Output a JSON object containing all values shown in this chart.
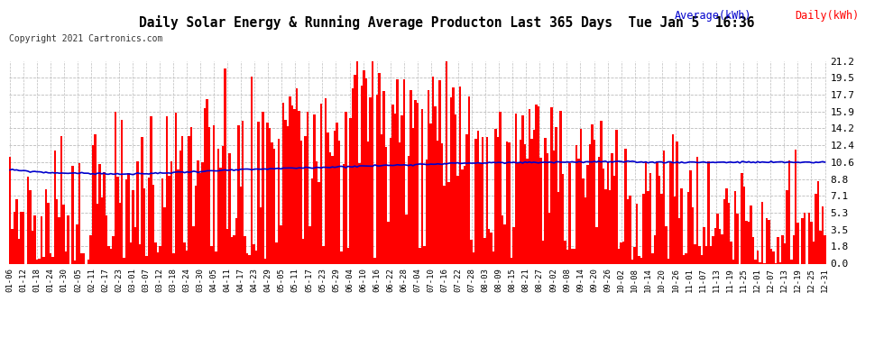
{
  "title": "Daily Solar Energy & Running Average Producton Last 365 Days  Tue Jan 5  16:36",
  "copyright": "Copyright 2021 Cartronics.com",
  "yticks": [
    0.0,
    1.8,
    3.5,
    5.3,
    7.1,
    8.8,
    10.6,
    12.4,
    14.2,
    15.9,
    17.7,
    19.5,
    21.2
  ],
  "ymax": 21.2,
  "ymin": 0.0,
  "bar_color": "#ff0000",
  "avg_color": "#0000cc",
  "bg_color": "#ffffff",
  "grid_color": "#bbbbbb",
  "title_color": "#000000",
  "legend_avg": "Average(kWh)",
  "legend_daily": "Daily(kWh)",
  "xtick_labels": [
    "01-06",
    "01-12",
    "01-18",
    "01-24",
    "01-30",
    "02-05",
    "02-11",
    "02-17",
    "02-23",
    "03-01",
    "03-07",
    "03-12",
    "03-18",
    "03-24",
    "03-30",
    "04-05",
    "04-11",
    "04-17",
    "04-23",
    "04-29",
    "05-05",
    "05-11",
    "05-17",
    "05-23",
    "05-29",
    "06-04",
    "06-10",
    "06-16",
    "06-22",
    "06-28",
    "07-04",
    "07-10",
    "07-16",
    "07-22",
    "07-28",
    "08-03",
    "08-09",
    "08-15",
    "08-21",
    "08-27",
    "09-02",
    "09-08",
    "09-14",
    "09-20",
    "09-26",
    "10-02",
    "10-08",
    "10-14",
    "10-20",
    "10-26",
    "11-01",
    "11-07",
    "11-13",
    "11-19",
    "11-25",
    "12-01",
    "12-07",
    "12-13",
    "12-19",
    "12-25",
    "12-31"
  ],
  "n_days": 365
}
